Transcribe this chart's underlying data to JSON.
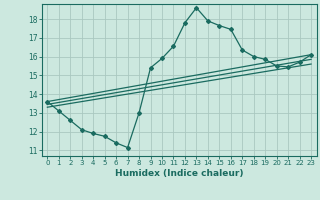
{
  "title": "",
  "xlabel": "Humidex (Indice chaleur)",
  "xlim": [
    -0.5,
    23.5
  ],
  "ylim": [
    10.7,
    18.8
  ],
  "yticks": [
    11,
    12,
    13,
    14,
    15,
    16,
    17,
    18
  ],
  "xticks": [
    0,
    1,
    2,
    3,
    4,
    5,
    6,
    7,
    8,
    9,
    10,
    11,
    12,
    13,
    14,
    15,
    16,
    17,
    18,
    19,
    20,
    21,
    22,
    23
  ],
  "bg_color": "#cce8df",
  "grid_color": "#aac8c0",
  "line_color": "#1a6b60",
  "line1_x": [
    0,
    1,
    2,
    3,
    4,
    5,
    6,
    7,
    8,
    9,
    10,
    11,
    12,
    13,
    14,
    15,
    16,
    17,
    18,
    19,
    20,
    21,
    22,
    23
  ],
  "line1_y": [
    13.6,
    13.1,
    12.6,
    12.1,
    11.9,
    11.75,
    11.4,
    11.15,
    13.0,
    15.4,
    15.9,
    16.55,
    17.8,
    18.6,
    17.9,
    17.65,
    17.45,
    16.35,
    16.0,
    15.85,
    15.5,
    15.45,
    15.7,
    16.1
  ],
  "line2_x": [
    0,
    23
  ],
  "line2_y": [
    13.6,
    16.1
  ],
  "line3_x": [
    0,
    23
  ],
  "line3_y": [
    13.45,
    15.85
  ],
  "line4_x": [
    0,
    23
  ],
  "line4_y": [
    13.3,
    15.6
  ]
}
